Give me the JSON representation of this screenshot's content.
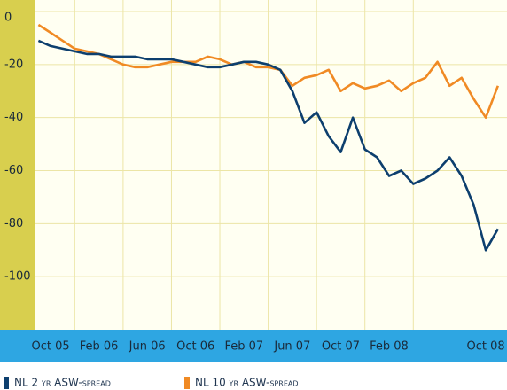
{
  "chart_data": {
    "type": "line",
    "categories": [
      null,
      "Oct 05",
      null,
      null,
      null,
      "Feb 06",
      null,
      null,
      null,
      "Jun 06",
      null,
      null,
      null,
      "Oct 06",
      null,
      null,
      null,
      "Feb 07",
      null,
      null,
      null,
      "Jun 07",
      null,
      null,
      null,
      "Oct 07",
      null,
      null,
      null,
      "Feb 08",
      null,
      null,
      null,
      null,
      null,
      null,
      null,
      "Oct 08",
      null
    ],
    "series": [
      {
        "name": "NL 2 yr ASW-spread",
        "color": "#0d3f6e",
        "values": [
          -11,
          -13,
          -14,
          -15,
          -16,
          -16,
          -17,
          -17,
          -17,
          -18,
          -18,
          -18,
          -19,
          -20,
          -21,
          -21,
          -20,
          -19,
          -19,
          -20,
          -22,
          -30,
          -42,
          -38,
          -47,
          -53,
          -40,
          -52,
          -55,
          -62,
          -60,
          -65,
          -63,
          -60,
          -55,
          -62,
          -73,
          -90,
          -82
        ]
      },
      {
        "name": "NL 10 yr ASW-spread",
        "color": "#f08a24",
        "values": [
          -5,
          -8,
          -11,
          -14,
          -15,
          -16,
          -18,
          -20,
          -21,
          -21,
          -20,
          -19,
          -19,
          -19,
          -17,
          -18,
          -20,
          -19,
          -21,
          -21,
          -22,
          -28,
          -25,
          -24,
          -22,
          -30,
          -27,
          -29,
          -28,
          -26,
          -30,
          -27,
          -25,
          -19,
          -28,
          -25,
          -33,
          -40,
          -28
        ]
      }
    ],
    "ylim": [
      -120,
      0
    ],
    "yticks": [
      0,
      -20,
      -40,
      -60,
      -80,
      -100
    ],
    "grid": true
  }
}
